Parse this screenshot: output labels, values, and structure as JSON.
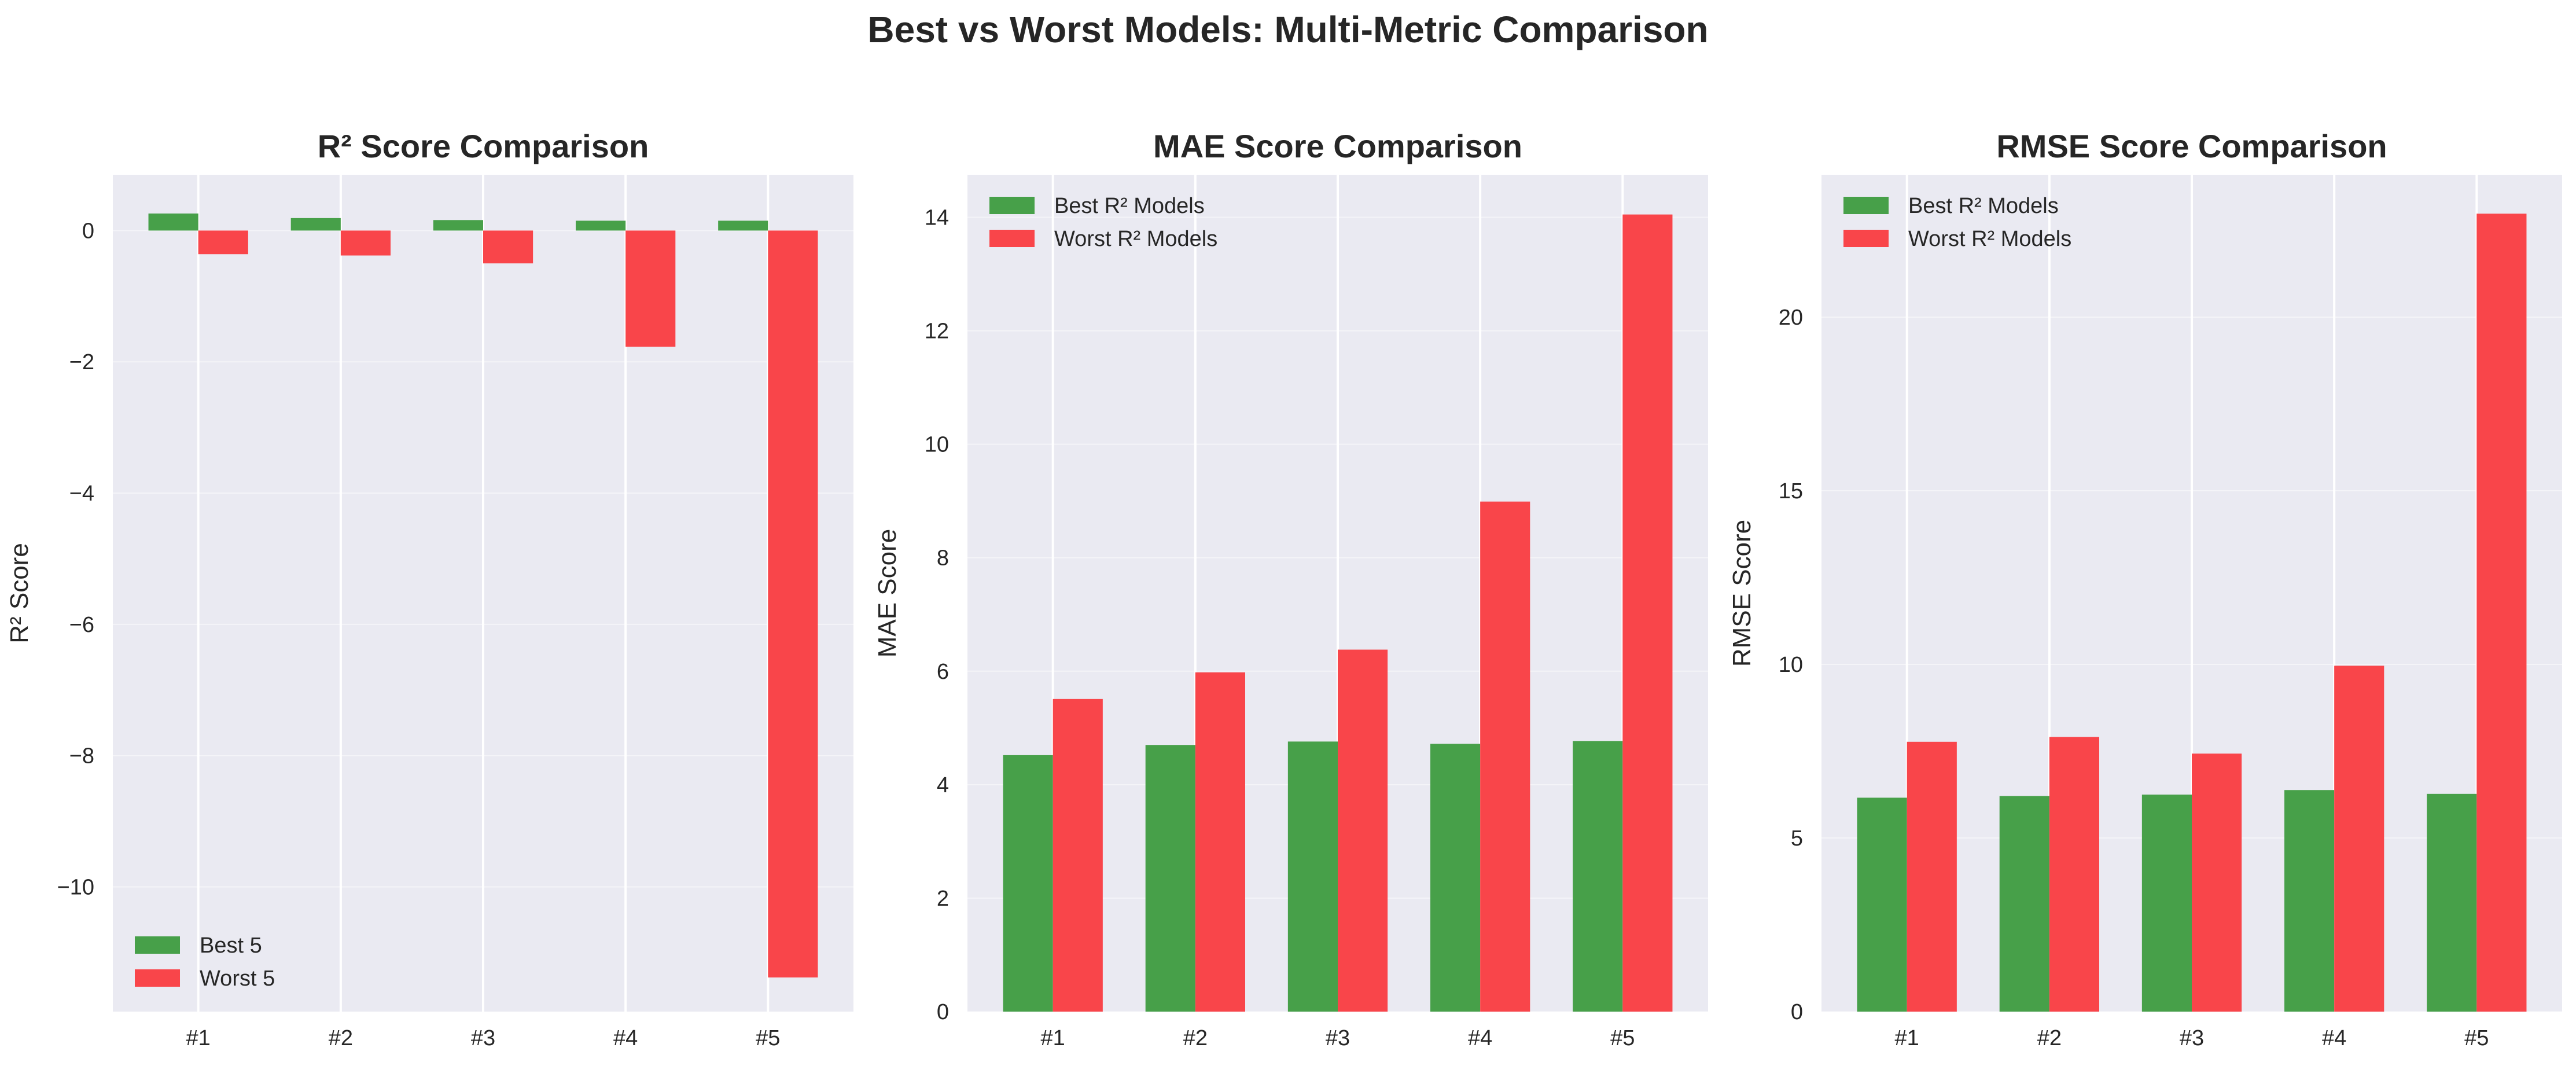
{
  "figure": {
    "title": "Best vs Worst Models: Multi-Metric Comparison"
  },
  "chart_data": [
    {
      "type": "bar",
      "title": "R² Score Comparison",
      "xlabel": "",
      "ylabel": "R² Score",
      "categories": [
        "#1",
        "#2",
        "#3",
        "#4",
        "#5"
      ],
      "ylim": [
        -11.9,
        0.85
      ],
      "yticks": [
        0,
        -2,
        -4,
        -6,
        -8,
        -10
      ],
      "ytick_labels": [
        "0",
        "−2",
        "−4",
        "−6",
        "−8",
        "−10"
      ],
      "grid": true,
      "legend_position": "lower-left",
      "series": [
        {
          "name": "Best 5",
          "color": "#47a049",
          "values": [
            0.26,
            0.19,
            0.16,
            0.15,
            0.15
          ]
        },
        {
          "name": "Worst 5",
          "color": "#f9454a",
          "values": [
            -0.36,
            -0.38,
            -0.5,
            -1.77,
            -11.38
          ]
        }
      ]
    },
    {
      "type": "bar",
      "title": "MAE Score Comparison",
      "xlabel": "",
      "ylabel": "MAE Score",
      "categories": [
        "#1",
        "#2",
        "#3",
        "#4",
        "#5"
      ],
      "ylim": [
        0,
        14.75
      ],
      "yticks": [
        0,
        2,
        4,
        6,
        8,
        10,
        12,
        14
      ],
      "ytick_labels": [
        "0",
        "2",
        "4",
        "6",
        "8",
        "10",
        "12",
        "14"
      ],
      "grid": true,
      "legend_position": "upper-left",
      "series": [
        {
          "name": "Best R² Models",
          "color": "#47a049",
          "values": [
            4.52,
            4.7,
            4.76,
            4.72,
            4.77
          ]
        },
        {
          "name": "Worst R² Models",
          "color": "#f9454a",
          "values": [
            5.51,
            5.98,
            6.38,
            8.99,
            14.05
          ]
        }
      ]
    },
    {
      "type": "bar",
      "title": "RMSE Score Comparison",
      "xlabel": "",
      "ylabel": "RMSE Score",
      "categories": [
        "#1",
        "#2",
        "#3",
        "#4",
        "#5"
      ],
      "ylim": [
        0,
        24.1
      ],
      "yticks": [
        0,
        5,
        10,
        15,
        20
      ],
      "ytick_labels": [
        "0",
        "5",
        "10",
        "15",
        "20"
      ],
      "grid": true,
      "legend_position": "upper-left",
      "series": [
        {
          "name": "Best R² Models",
          "color": "#47a049",
          "values": [
            6.16,
            6.21,
            6.25,
            6.38,
            6.27
          ]
        },
        {
          "name": "Worst R² Models",
          "color": "#f9454a",
          "values": [
            7.77,
            7.91,
            7.43,
            9.96,
            22.98
          ]
        }
      ]
    }
  ],
  "theme": {
    "background": "#eaeaf2",
    "grid": "#ffffff",
    "text": "#262626"
  }
}
